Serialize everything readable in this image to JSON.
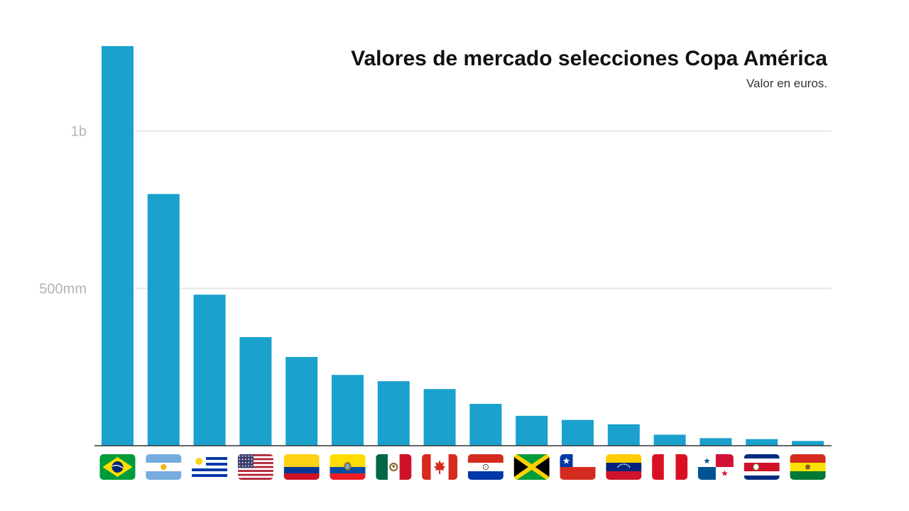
{
  "chart_data": {
    "type": "bar",
    "title": "Valores de mercado selecciones Copa América",
    "subtitle": "Valor en euros.",
    "xlabel": "",
    "ylabel": "",
    "categories": [
      "Brazil",
      "Argentina",
      "Uruguay",
      "United States",
      "Colombia",
      "Ecuador",
      "Mexico",
      "Canada",
      "Paraguay",
      "Jamaica",
      "Chile",
      "Venezuela",
      "Peru",
      "Panama",
      "Costa Rica",
      "Bolivia"
    ],
    "values": [
      1270,
      800,
      480,
      345,
      282,
      225,
      205,
      180,
      133,
      95,
      82,
      68,
      35,
      24,
      21,
      15
    ],
    "value_unit": "millions of euros",
    "ylim": [
      0,
      1270
    ],
    "yticks": [
      {
        "value": 1000,
        "label": "1b"
      },
      {
        "value": 500,
        "label": "500mm"
      }
    ],
    "grid": true,
    "legend": "none",
    "bar_color": "#1aa1cd"
  },
  "icons": [
    "flag-brazil-icon",
    "flag-argentina-icon",
    "flag-uruguay-icon",
    "flag-usa-icon",
    "flag-colombia-icon",
    "flag-ecuador-icon",
    "flag-mexico-icon",
    "flag-canada-icon",
    "flag-paraguay-icon",
    "flag-jamaica-icon",
    "flag-chile-icon",
    "flag-venezuela-icon",
    "flag-peru-icon",
    "flag-panama-icon",
    "flag-costa-rica-icon",
    "flag-bolivia-icon"
  ]
}
